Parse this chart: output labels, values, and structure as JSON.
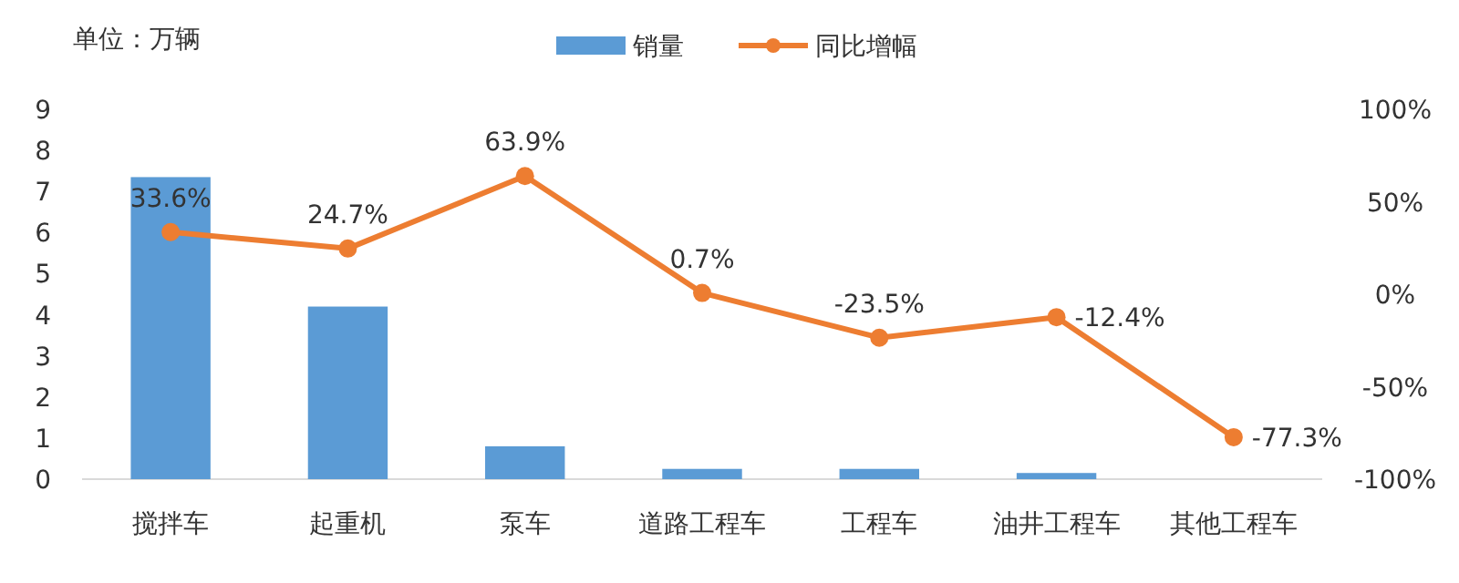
{
  "chart_data": {
    "type": "bar",
    "annotations": [
      "单位：万辆"
    ],
    "categories": [
      "搅拌车",
      "起重机",
      "泵车",
      "道路工程车",
      "工程车",
      "油井工程车",
      "其他工程车"
    ],
    "series": [
      {
        "name": "销量",
        "color": "#5b9bd5",
        "values": [
          7.35,
          4.2,
          0.8,
          0.25,
          0.25,
          0.15,
          0
        ]
      },
      {
        "name": "同比增幅",
        "type": "line",
        "axis": "y2",
        "color": "#ed7d31",
        "marker": "circle",
        "values": [
          33.6,
          24.7,
          63.9,
          0.7,
          -23.5,
          -12.4,
          -77.3
        ],
        "value_labels": [
          "33.6%",
          "24.7%",
          "63.9%",
          "0.7%",
          "-23.5%",
          "-12.4%",
          "-77.3%"
        ]
      }
    ],
    "ylim": [
      0,
      9
    ],
    "yticks": [
      0,
      1,
      2,
      3,
      4,
      5,
      6,
      7,
      8,
      9
    ],
    "y2lim": [
      -100,
      100
    ],
    "y2ticks": [
      {
        "value": -100,
        "label": "-100%"
      },
      {
        "value": -50,
        "label": "-50%"
      },
      {
        "value": 0,
        "label": "0%"
      },
      {
        "value": 50,
        "label": "50%"
      },
      {
        "value": 100,
        "label": "100%"
      }
    ],
    "legend": "top",
    "grid": false
  }
}
